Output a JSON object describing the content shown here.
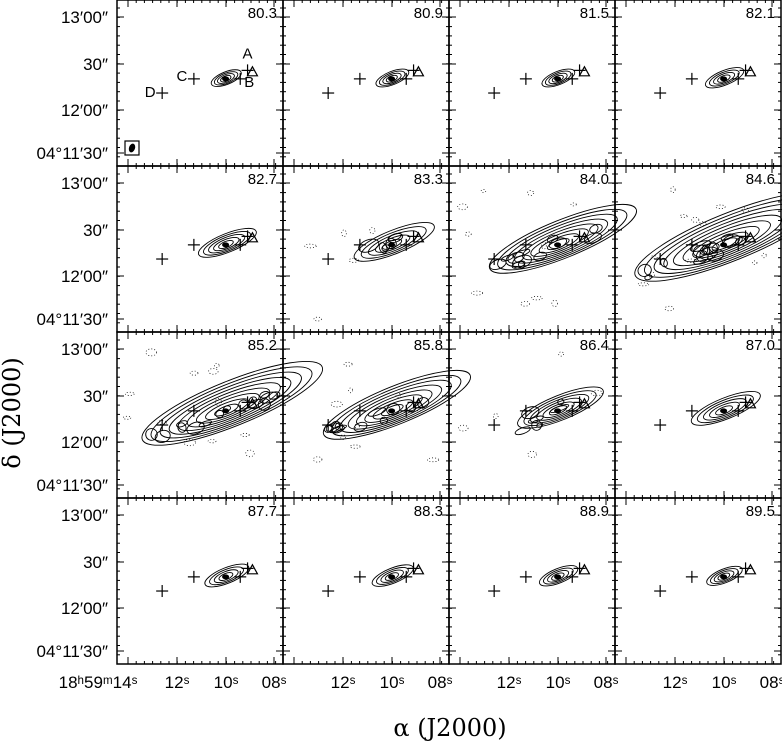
{
  "chart_data": {
    "type": "channel-map",
    "layout": {
      "rows": 4,
      "cols": 4
    },
    "xlabel": "α (J2000)",
    "ylabel": "δ (J2000)",
    "x_tick_labels": [
      [
        "18ʰ59ᵐ14ˢ",
        "12ˢ",
        "10ˢ",
        "08ˢ"
      ],
      [
        "12ˢ",
        "10ˢ",
        "08ˢ"
      ],
      [
        "12ˢ",
        "10ˢ",
        "08ˢ"
      ],
      [
        "12ˢ",
        "10ˢ",
        "08ˢ"
      ]
    ],
    "y_tick_labels": [
      "13′00″",
      "30″",
      "12′00″",
      "04°11′30″"
    ],
    "velocities": [
      "80.3",
      "80.9",
      "81.5",
      "82.1",
      "82.7",
      "83.3",
      "84.0",
      "84.6",
      "85.2",
      "85.8",
      "86.4",
      "87.0",
      "87.7",
      "88.3",
      "88.9",
      "89.5"
    ],
    "sources": [
      {
        "label": "A",
        "ra_s": 9.1,
        "dec_s": 28
      },
      {
        "label": "B",
        "ra_s": 9.4,
        "dec_s": 22
      },
      {
        "label": "C",
        "ra_s": 11.3,
        "dec_s": 22
      },
      {
        "label": "D",
        "ra_s": 12.6,
        "dec_s": 12
      }
    ],
    "triangle_marker": {
      "ra_s": 8.9,
      "dec_s": 27
    },
    "beam": "filled ellipse in boxed corner (panel 1)"
  }
}
